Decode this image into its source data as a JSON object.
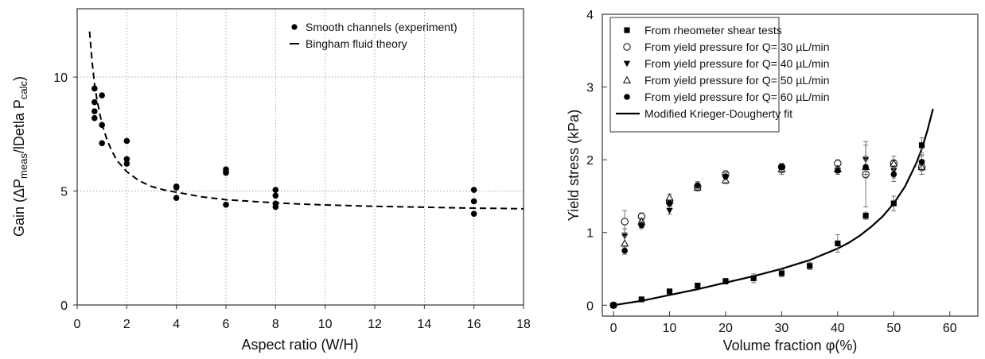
{
  "chart_data": [
    {
      "type": "scatter",
      "xlabel": "Aspect ratio (W/H)",
      "ylabel": "Gain (ΔPmeas/lDetla Pcalc)",
      "ylabel_parts": {
        "pre": "Gain (ΔP",
        "sub1": "meas",
        "mid": "/lDetla P",
        "sub2": "calc",
        "post": ")"
      },
      "xlim": [
        0,
        18
      ],
      "ylim": [
        0,
        13
      ],
      "xticks": [
        "0",
        "2",
        "4",
        "6",
        "8",
        "10",
        "12",
        "14",
        "16",
        "18"
      ],
      "yticks": [
        "0",
        "5",
        "10"
      ],
      "grid": true,
      "legend_position": "top-right",
      "legend": [
        "Smooth channels (experiment)",
        "Bingham fluid theory"
      ],
      "series": [
        {
          "name": "Smooth channels (experiment)",
          "marker": "filled-circle",
          "x": [
            0.7,
            0.7,
            0.7,
            0.7,
            1.0,
            1.0,
            1.0,
            2.0,
            2.0,
            2.0,
            4.0,
            4.0,
            4.0,
            6.0,
            6.0,
            6.0,
            6.0,
            8.0,
            8.0,
            8.0,
            8.0,
            16.0,
            16.0,
            16.0
          ],
          "y": [
            9.5,
            8.9,
            8.5,
            8.2,
            9.2,
            7.9,
            7.1,
            7.2,
            6.4,
            6.2,
            5.2,
            5.15,
            4.7,
            5.95,
            5.85,
            5.8,
            4.4,
            5.05,
            4.8,
            4.45,
            4.3,
            5.05,
            4.55,
            4.0
          ]
        },
        {
          "name": "Bingham fluid theory",
          "style": "dashed",
          "x": [
            0.5,
            0.6,
            0.7,
            0.8,
            0.9,
            1.0,
            1.2,
            1.4,
            1.6,
            1.8,
            2.0,
            2.5,
            3.0,
            3.5,
            4.0,
            5.0,
            6.0,
            7.0,
            8.0,
            9.0,
            10.0,
            11.0,
            12.0,
            13.0,
            14.0,
            15.0,
            16.0,
            17.0,
            18.0
          ],
          "y": [
            12.0,
            10.7,
            9.7,
            9.0,
            8.45,
            7.95,
            7.25,
            6.75,
            6.35,
            6.1,
            5.85,
            5.45,
            5.2,
            5.05,
            4.95,
            4.75,
            4.62,
            4.55,
            4.48,
            4.43,
            4.39,
            4.36,
            4.33,
            4.31,
            4.29,
            4.27,
            4.25,
            4.24,
            4.22
          ]
        }
      ]
    },
    {
      "type": "scatter",
      "xlabel": "Volume fraction φ(%)",
      "ylabel": "Yield stress (kPa)",
      "xlim": [
        -2,
        65
      ],
      "ylim": [
        -0.15,
        4
      ],
      "xticks": [
        "0",
        "10",
        "20",
        "30",
        "40",
        "50",
        "60"
      ],
      "yticks": [
        "0",
        "1",
        "2",
        "3",
        "4"
      ],
      "grid": false,
      "legend_position": "top-left",
      "series": [
        {
          "name": "From rheometer shear tests",
          "marker": "filled-square",
          "x": [
            0,
            5,
            10,
            15,
            20,
            25,
            30,
            35,
            40,
            45,
            50,
            55
          ],
          "y": [
            0.0,
            0.08,
            0.19,
            0.27,
            0.33,
            0.37,
            0.44,
            0.54,
            0.85,
            1.23,
            1.4,
            2.2
          ],
          "err": [
            0.02,
            0.02,
            0.03,
            0.03,
            0.04,
            0.06,
            0.05,
            0.05,
            0.12,
            0.05,
            0.1,
            0.1
          ]
        },
        {
          "name": "From yield pressure for Q= 30 µL/min",
          "marker": "open-circle",
          "x": [
            0,
            2,
            5,
            10,
            15,
            20,
            30,
            40,
            45,
            50,
            55
          ],
          "y": [
            0.0,
            1.15,
            1.22,
            1.42,
            1.63,
            1.8,
            1.9,
            1.95,
            1.8,
            1.95,
            1.9
          ],
          "err": [
            0.0,
            0.15,
            0.05,
            0.05,
            0.05,
            0.05,
            0.05,
            0.05,
            0.45,
            0.05,
            0.1
          ]
        },
        {
          "name": "From yield pressure for Q= 40 µL/min",
          "marker": "filled-triangle-down",
          "x": [
            2,
            5,
            10,
            15,
            20,
            30,
            40,
            45,
            50,
            55
          ],
          "y": [
            0.95,
            1.12,
            1.3,
            1.62,
            1.75,
            1.85,
            1.85,
            2.0,
            1.85,
            1.95
          ],
          "err": [
            0.1,
            0.05,
            0.05,
            0.05,
            0.05,
            0.05,
            0.05,
            0.2,
            0.1,
            0.1
          ]
        },
        {
          "name": "From yield pressure for Q= 50 µL/min",
          "marker": "open-triangle-up",
          "x": [
            2,
            5,
            10,
            15,
            20,
            30,
            40,
            45,
            50,
            55
          ],
          "y": [
            0.85,
            1.15,
            1.48,
            1.62,
            1.72,
            1.87,
            1.87,
            1.9,
            1.95,
            1.9
          ],
          "err": [
            0.1,
            0.05,
            0.05,
            0.05,
            0.05,
            0.05,
            0.05,
            0.15,
            0.1,
            0.1
          ]
        },
        {
          "name": "From yield pressure for Q= 60 µL/min",
          "marker": "filled-circle",
          "x": [
            2,
            5,
            10,
            15,
            20,
            30,
            40,
            45,
            50,
            55
          ],
          "y": [
            0.75,
            1.1,
            1.4,
            1.65,
            1.77,
            1.9,
            1.85,
            1.9,
            1.8,
            1.97
          ],
          "err": [
            0.05,
            0.05,
            0.05,
            0.05,
            0.05,
            0.05,
            0.05,
            0.1,
            0.1,
            0.1
          ]
        },
        {
          "name": "Modified Krieger-Dougherty fit",
          "style": "solid",
          "x": [
            0,
            5,
            10,
            15,
            20,
            25,
            30,
            35,
            40,
            42,
            44,
            46,
            48,
            50,
            52,
            54,
            55,
            56,
            57
          ],
          "y": [
            0.0,
            0.06,
            0.14,
            0.22,
            0.31,
            0.4,
            0.5,
            0.62,
            0.78,
            0.86,
            0.96,
            1.08,
            1.22,
            1.4,
            1.63,
            1.95,
            2.15,
            2.4,
            2.7
          ]
        }
      ]
    }
  ]
}
